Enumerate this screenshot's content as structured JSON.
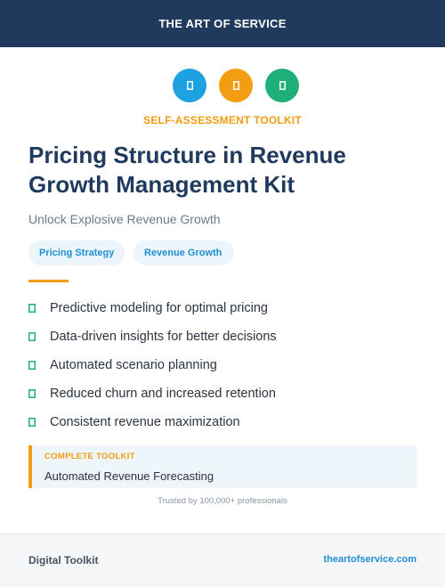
{
  "header": {
    "brand": "THE ART OF SERVICE"
  },
  "icons": [
    {
      "name": "placeholder-glyph-icon",
      "color": "#1ea1e0"
    },
    {
      "name": "placeholder-glyph-icon",
      "color": "#f29d12"
    },
    {
      "name": "placeholder-glyph-icon",
      "color": "#1fb07a"
    }
  ],
  "hero": {
    "kicker": "SELF-ASSESSMENT TOOLKIT",
    "title": "Pricing Structure in Revenue Growth Management Kit",
    "subtitle": "Unlock Explosive Revenue Growth"
  },
  "tags": [
    "Pricing Strategy",
    "Revenue Growth"
  ],
  "features": [
    "Predictive modeling for optimal pricing",
    "Data-driven insights for better decisions",
    "Automated scenario planning",
    "Reduced churn and increased retention",
    "Consistent revenue maximization"
  ],
  "callout": {
    "label": "COMPLETE TOOLKIT",
    "value": "Automated Revenue Forecasting"
  },
  "trust": "Trusted by 100,000+ professionals",
  "footer": {
    "left": "Digital Toolkit",
    "right": "theartofservice.com"
  },
  "colors": {
    "navy": "#1f3a5c",
    "accent_orange": "#f29d12",
    "accent_blue": "#1ea1e0",
    "accent_green": "#1fb07a",
    "link_blue": "#1e8fd0"
  }
}
